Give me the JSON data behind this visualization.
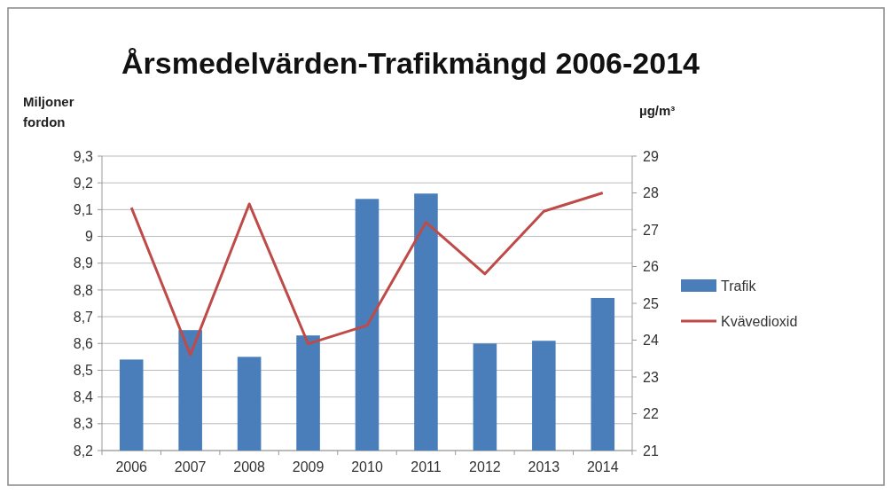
{
  "chart_data": {
    "type": "bar",
    "title": "Årsmedelvärden-Trafikmängd 2006-2014",
    "ylabel": "Miljoner\nfordon",
    "y2label": "µg/m³",
    "categories": [
      "2006",
      "2007",
      "2008",
      "2009",
      "2010",
      "2011",
      "2012",
      "2013",
      "2014"
    ],
    "series": [
      {
        "name": "Trafik",
        "color": "#4a7ebb",
        "values": [
          8.54,
          8.65,
          8.55,
          8.63,
          9.14,
          9.16,
          8.6,
          8.61,
          8.77
        ]
      },
      {
        "name": "Kvävedioxid",
        "type": "line",
        "axis": "y2",
        "color": "#be4b48",
        "values": [
          27.6,
          23.6,
          27.7,
          23.9,
          24.4,
          27.2,
          25.8,
          27.5,
          28.0
        ]
      }
    ],
    "ylim": [
      8.2,
      9.3
    ],
    "yticks": [
      {
        "value": 8.2,
        "label": "8,2"
      },
      {
        "value": 8.3,
        "label": "8,3"
      },
      {
        "value": 8.4,
        "label": "8,4"
      },
      {
        "value": 8.5,
        "label": "8,5"
      },
      {
        "value": 8.6,
        "label": "8,6"
      },
      {
        "value": 8.7,
        "label": "8,7"
      },
      {
        "value": 8.8,
        "label": "8,8"
      },
      {
        "value": 8.9,
        "label": "8,9"
      },
      9,
      {
        "value": 9.1,
        "label": "9,1"
      },
      {
        "value": 9.2,
        "label": "9,2"
      },
      {
        "value": 9.3,
        "label": "9,3"
      }
    ],
    "y2lim": [
      21,
      29
    ],
    "y2ticks": [
      21,
      22,
      23,
      24,
      25,
      26,
      27,
      28,
      29
    ],
    "grid": "y",
    "legend": "right",
    "marker": "none",
    "line_style": "solid"
  }
}
